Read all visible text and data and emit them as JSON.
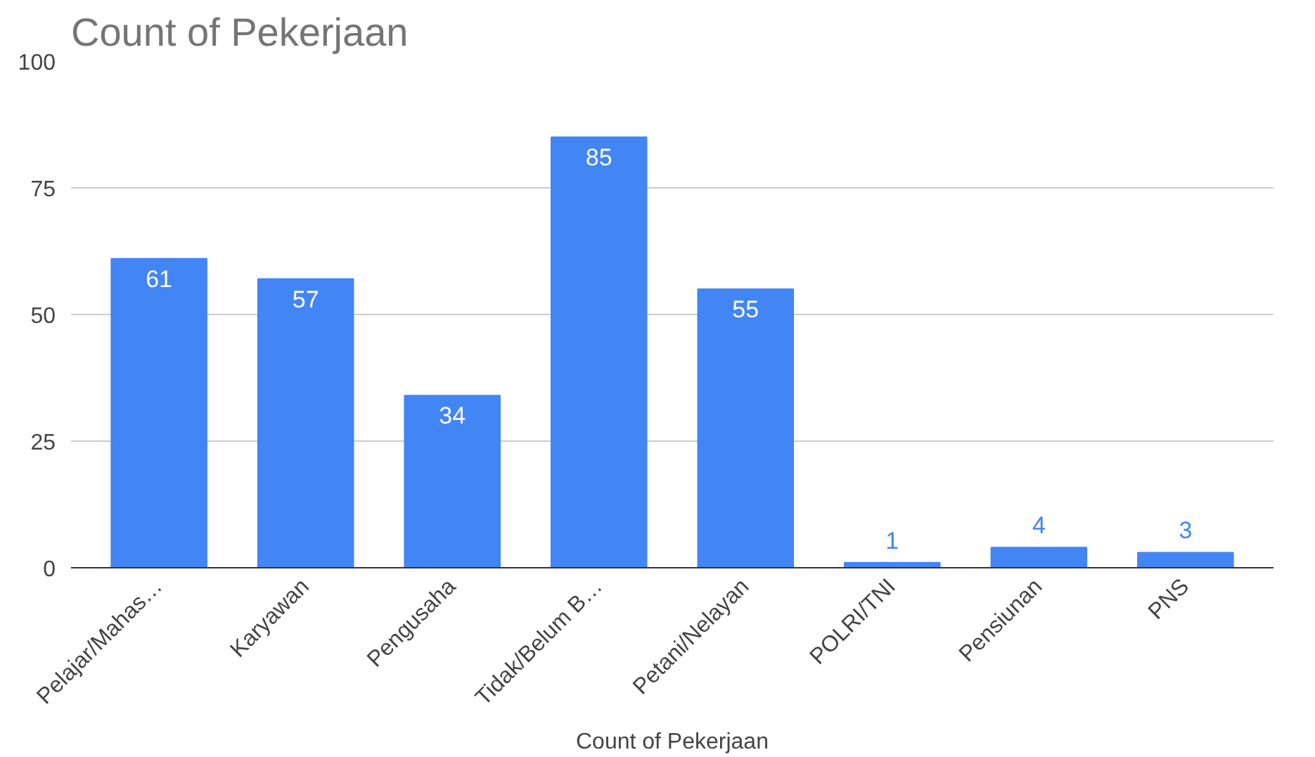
{
  "chart_data": {
    "type": "bar",
    "title": "Count of Pekerjaan",
    "xlabel": "Count of Pekerjaan",
    "categories": [
      "Pelajar/Mahas…",
      "Karyawan",
      "Pengusaha",
      "Tidak/Belum B…",
      "Petani/Nelayan",
      "POLRI/TNI",
      "Pensiunan",
      "PNS"
    ],
    "values": [
      61,
      57,
      34,
      85,
      55,
      1,
      4,
      3
    ],
    "color": "#4285f4",
    "ylim": [
      0,
      100
    ],
    "yticks": [
      0,
      25,
      50,
      75,
      100
    ],
    "grid": "y",
    "data_labels": true
  }
}
